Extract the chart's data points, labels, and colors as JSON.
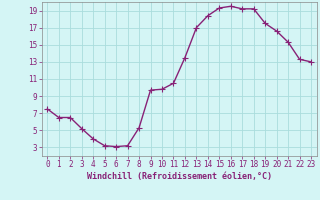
{
  "x": [
    0,
    1,
    2,
    3,
    4,
    5,
    6,
    7,
    8,
    9,
    10,
    11,
    12,
    13,
    14,
    15,
    16,
    17,
    18,
    19,
    20,
    21,
    22,
    23
  ],
  "y": [
    7.5,
    6.5,
    6.5,
    5.2,
    4.0,
    3.2,
    3.1,
    3.2,
    5.3,
    9.7,
    9.8,
    10.5,
    13.5,
    17.0,
    18.4,
    19.3,
    19.5,
    19.2,
    19.2,
    17.5,
    16.6,
    15.3,
    13.3,
    13.0
  ],
  "line_color": "#882277",
  "marker": "+",
  "marker_size": 4,
  "bg_color": "#d4f5f5",
  "grid_color": "#aadddd",
  "xlabel": "Windchill (Refroidissement éolien,°C)",
  "xlabel_color": "#882277",
  "tick_color": "#882277",
  "xlim": [
    -0.5,
    23.5
  ],
  "ylim": [
    2,
    20
  ],
  "yticks": [
    3,
    5,
    7,
    9,
    11,
    13,
    15,
    17,
    19
  ],
  "xticks": [
    0,
    1,
    2,
    3,
    4,
    5,
    6,
    7,
    8,
    9,
    10,
    11,
    12,
    13,
    14,
    15,
    16,
    17,
    18,
    19,
    20,
    21,
    22,
    23
  ],
  "line_width": 1.0,
  "tick_fontsize": 5.5,
  "xlabel_fontsize": 6.0
}
